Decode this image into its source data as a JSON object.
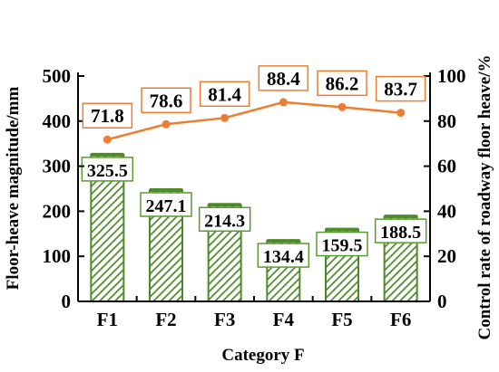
{
  "chart_data": {
    "type": "bar",
    "categories": [
      "F1",
      "F2",
      "F3",
      "F4",
      "F5",
      "F6"
    ],
    "xlabel": "Category F",
    "ylabel": "Floor-heave magnitude/mm",
    "ylabel_right": "Control rate of roadway floor heave/%",
    "ylim": [
      0,
      500
    ],
    "ylim_right": [
      0,
      100
    ],
    "yticks": [
      0,
      100,
      200,
      300,
      400,
      500
    ],
    "yticks_right": [
      0,
      20,
      40,
      60,
      80,
      100
    ],
    "series": [
      {
        "type": "bar",
        "axis": "left",
        "values": [
          325.5,
          247.1,
          214.3,
          134.4,
          159.5,
          188.5
        ],
        "color": "#4f8a2a",
        "pattern": "diagonal-hatch"
      },
      {
        "type": "line",
        "axis": "right",
        "values": [
          71.8,
          78.6,
          81.4,
          88.4,
          86.2,
          83.7
        ],
        "color": "#ed7d31"
      }
    ],
    "grid": false,
    "legend": "none"
  }
}
